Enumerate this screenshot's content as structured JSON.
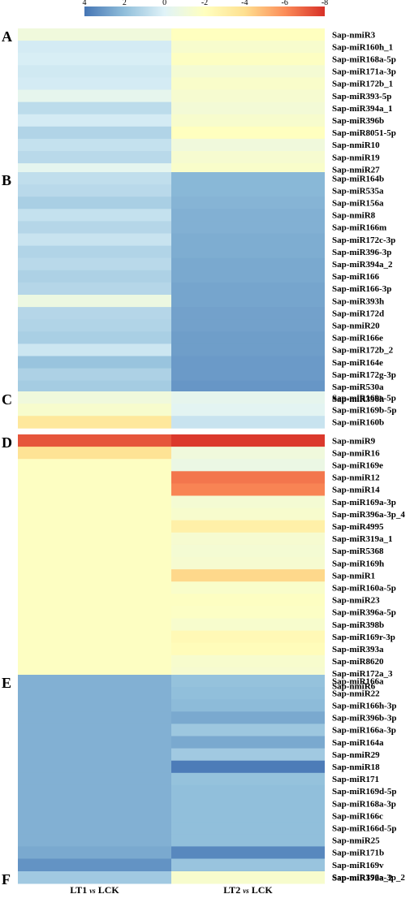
{
  "chart_data": {
    "type": "heatmap",
    "columns": [
      "LT1 vs LCK",
      "LT2 vs LCK"
    ],
    "colorbar": {
      "ticks": [
        "4",
        "2",
        "0",
        "-2",
        "-4",
        "-6",
        "-8"
      ],
      "range": [
        4,
        -8
      ],
      "colors": [
        "#4575b4",
        "#91bfdb",
        "#e0f3f8",
        "#ffffbf",
        "#fee090",
        "#fc8d59",
        "#d73027"
      ]
    },
    "xlabels": {
      "lt1": "LT1",
      "lt2": "LT2",
      "vs": "vs",
      "ck": "LCK"
    },
    "panels": [
      {
        "label": "A",
        "rows": [
          {
            "name": "Sap-nmiR3",
            "values": [
              -1.0,
              -2.0
            ]
          },
          {
            "name": "Sap-miR160h_1",
            "values": [
              0.3,
              -1.5
            ]
          },
          {
            "name": "Sap-miR168a-5p",
            "values": [
              0.2,
              -1.9
            ]
          },
          {
            "name": "Sap-miR171a-3p",
            "values": [
              0.4,
              -1.3
            ]
          },
          {
            "name": "Sap-miR172b_1",
            "values": [
              0.3,
              -1.6
            ]
          },
          {
            "name": "Sap-miR393-5p",
            "values": [
              -0.4,
              -1.4
            ]
          },
          {
            "name": "Sap-miR394a_1",
            "values": [
              0.9,
              -1.2
            ]
          },
          {
            "name": "Sap-miR396b",
            "values": [
              0.3,
              -1.5
            ]
          },
          {
            "name": "Sap-miR8051-5p",
            "values": [
              1.2,
              -2.0
            ]
          },
          {
            "name": "Sap-nmiR10",
            "values": [
              0.7,
              -1.0
            ]
          },
          {
            "name": "Sap-nmiR19",
            "values": [
              1.0,
              -1.4
            ]
          },
          {
            "name": "Sap-nmiR27",
            "values": [
              -0.3,
              -1.6
            ]
          }
        ]
      },
      {
        "label": "B",
        "rows": [
          {
            "name": "Sap-miR164b",
            "values": [
              0.8,
              2.2
            ]
          },
          {
            "name": "Sap-miR535a",
            "values": [
              1.0,
              2.2
            ]
          },
          {
            "name": "Sap-miR156a",
            "values": [
              1.4,
              2.3
            ]
          },
          {
            "name": "Sap-nmiR8",
            "values": [
              0.7,
              2.4
            ]
          },
          {
            "name": "Sap-miR166m",
            "values": [
              1.1,
              2.4
            ]
          },
          {
            "name": "Sap-miR172c-3p",
            "values": [
              0.6,
              2.5
            ]
          },
          {
            "name": "Sap-miR396-3p",
            "values": [
              1.2,
              2.5
            ]
          },
          {
            "name": "Sap-miR394a_2",
            "values": [
              1.0,
              2.6
            ]
          },
          {
            "name": "Sap-miR166",
            "values": [
              1.3,
              2.6
            ]
          },
          {
            "name": "Sap-miR166-3p",
            "values": [
              1.1,
              2.7
            ]
          },
          {
            "name": "Sap-miR393h",
            "values": [
              -0.8,
              2.7
            ]
          },
          {
            "name": "Sap-miR172d",
            "values": [
              1.1,
              2.8
            ]
          },
          {
            "name": "Sap-nmiR20",
            "values": [
              1.2,
              2.8
            ]
          },
          {
            "name": "Sap-miR166e",
            "values": [
              1.4,
              2.9
            ]
          },
          {
            "name": "Sap-miR172b_2",
            "values": [
              0.5,
              2.9
            ]
          },
          {
            "name": "Sap-miR164e",
            "values": [
              1.8,
              3.0
            ]
          },
          {
            "name": "Sap-miR172g-3p",
            "values": [
              1.3,
              3.0
            ]
          },
          {
            "name": "Sap-miR530a",
            "values": [
              1.5,
              3.1
            ]
          },
          {
            "name": "Sap-miR396h",
            "values": [
              0.9,
              3.1
            ]
          }
        ]
      },
      {
        "label": "C",
        "rows": [
          {
            "name": "Sap-miR169a-5p",
            "values": [
              -1.0,
              -0.4
            ]
          },
          {
            "name": "Sap-miR169b-5p",
            "values": [
              -1.5,
              -0.2
            ]
          },
          {
            "name": "Sap-miR160b",
            "values": [
              -3.5,
              0.6
            ]
          }
        ]
      },
      {
        "label": "D",
        "rows": [
          {
            "name": "Sap-nmiR9",
            "values": [
              -7.2,
              -7.8
            ]
          },
          {
            "name": "Sap-nmiR16",
            "values": [
              -3.8,
              -1.0
            ]
          },
          {
            "name": "Sap-miR169e",
            "values": [
              -1.9,
              -0.7
            ]
          },
          {
            "name": "Sap-nmiR12",
            "values": [
              -1.9,
              -6.5
            ]
          },
          {
            "name": "Sap-nmiR14",
            "values": [
              -1.9,
              -6.2
            ]
          },
          {
            "name": "Sap-miR169a-3p",
            "values": [
              -1.9,
              -1.3
            ]
          },
          {
            "name": "Sap-miR396a-3p_4",
            "values": [
              -1.9,
              -1.5
            ]
          },
          {
            "name": "Sap-miR4995",
            "values": [
              -1.9,
              -3.0
            ]
          },
          {
            "name": "Sap-miR319a_1",
            "values": [
              -1.9,
              -1.4
            ]
          },
          {
            "name": "Sap-miR5368",
            "values": [
              -1.9,
              -1.3
            ]
          },
          {
            "name": "Sap-miR169h",
            "values": [
              -1.9,
              -1.4
            ]
          },
          {
            "name": "Sap-nmiR1",
            "values": [
              -1.9,
              -4.2
            ]
          },
          {
            "name": "Sap-miR160a-5p",
            "values": [
              -1.9,
              -1.6
            ]
          },
          {
            "name": "Sap-nmiR23",
            "values": [
              -1.9,
              -1.9
            ]
          },
          {
            "name": "Sap-miR396a-5p",
            "values": [
              -1.9,
              -1.8
            ]
          },
          {
            "name": "Sap-miR398b",
            "values": [
              -1.9,
              -1.5
            ]
          },
          {
            "name": "Sap-miR169r-3p",
            "values": [
              -1.9,
              -2.4
            ]
          },
          {
            "name": "Sap-miR393a",
            "values": [
              -1.9,
              -2.2
            ]
          },
          {
            "name": "Sap-miR8620",
            "values": [
              -1.9,
              -1.5
            ]
          },
          {
            "name": "Sap-miR172a_3",
            "values": [
              -1.9,
              -1.4
            ]
          },
          {
            "name": "Sap-nmiR6",
            "values": [
              -1.9,
              -2.0
            ]
          }
        ]
      },
      {
        "label": "E",
        "rows": [
          {
            "name": "Sap-miR166a",
            "values": [
              2.4,
              1.9
            ]
          },
          {
            "name": "Sap-nmiR22",
            "values": [
              2.4,
              2.0
            ]
          },
          {
            "name": "Sap-miR166h-3p",
            "values": [
              2.4,
              2.1
            ]
          },
          {
            "name": "Sap-miR396b-3p",
            "values": [
              2.4,
              2.6
            ]
          },
          {
            "name": "Sap-miR166a-3p",
            "values": [
              2.4,
              1.7
            ]
          },
          {
            "name": "Sap-miR164a",
            "values": [
              2.4,
              2.6
            ]
          },
          {
            "name": "Sap-nmiR29",
            "values": [
              2.4,
              1.6
            ]
          },
          {
            "name": "Sap-nmiR18",
            "values": [
              2.4,
              3.8
            ]
          },
          {
            "name": "Sap-miR171",
            "values": [
              2.4,
              1.9
            ]
          },
          {
            "name": "Sap-miR169d-5p",
            "values": [
              2.4,
              2.0
            ]
          },
          {
            "name": "Sap-miR168a-3p",
            "values": [
              2.4,
              2.0
            ]
          },
          {
            "name": "Sap-miR166c",
            "values": [
              2.4,
              2.0
            ]
          },
          {
            "name": "Sap-miR166d-5p",
            "values": [
              2.4,
              2.0
            ]
          },
          {
            "name": "Sap-nmiR25",
            "values": [
              2.4,
              2.0
            ]
          },
          {
            "name": "Sap-miR171b",
            "values": [
              2.6,
              3.5
            ]
          },
          {
            "name": "Sap-miR169v",
            "values": [
              3.2,
              1.8
            ]
          },
          {
            "name": "Sap-miR396a-3p_2",
            "values": [
              3.2,
              2.3
            ]
          }
        ]
      },
      {
        "label": "F",
        "rows": [
          {
            "name": "Sap-miR172a_2",
            "values": [
              1.6,
              -1.5
            ]
          }
        ]
      }
    ]
  }
}
